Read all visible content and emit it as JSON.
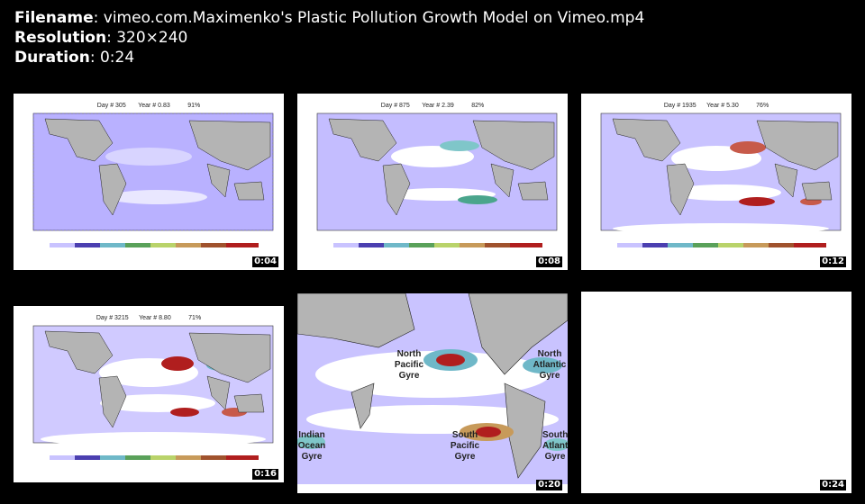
{
  "meta": {
    "filename_label": "Filename",
    "filename": "vimeo.com.Maximenko's Plastic Pollution Growth Model on Vimeo.mp4",
    "resolution_label": "Resolution",
    "resolution": "320×240",
    "duration_label": "Duration",
    "duration": "0:24"
  },
  "frames": [
    {
      "timestamp": "0:04",
      "header": "Day # 305       Year # 0.83          91%"
    },
    {
      "timestamp": "0:08",
      "header": "Day # 875       Year # 2.39          82%"
    },
    {
      "timestamp": "0:12",
      "header": "Day # 1935      Year # 5.30          76%"
    },
    {
      "timestamp": "0:16",
      "header": "Day # 3215      Year # 8.80          71%"
    },
    {
      "timestamp": "0:20",
      "gyres": [
        "North\nPacific\nGyre",
        "North\nAtlantic\nGyre",
        "Indian\nOcean\nGyre",
        "South\nPacific\nGyre",
        "South\nAtlantic\nGyre"
      ]
    },
    {
      "timestamp": "0:24"
    }
  ]
}
